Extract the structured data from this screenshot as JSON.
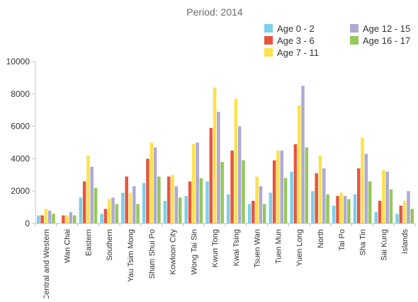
{
  "chart_data": {
    "type": "bar",
    "title": "Period: 2014",
    "xlabel": "",
    "ylabel": "",
    "ylim": [
      0,
      10000
    ],
    "yticks": [
      0,
      2000,
      4000,
      6000,
      8000,
      10000
    ],
    "grid": false,
    "legend_position": "top-right",
    "categories": [
      "Central and Western",
      "Wan Chai",
      "Eastern",
      "Southern",
      "Yau Tsim Mong",
      "Sham Shui Po",
      "Kowloon City",
      "Wong Tai Sin",
      "Kwun Tong",
      "Kwai Tsing",
      "Tsuen Wan",
      "Tuen Mun",
      "Yuen Long",
      "North",
      "Tai Po",
      "Sha Tin",
      "Sai Kung",
      "Islands"
    ],
    "series": [
      {
        "name": "Age 0 - 2",
        "color": "#7ecfea",
        "values": [
          500,
          0,
          1600,
          600,
          1900,
          2500,
          1400,
          1700,
          2600,
          1800,
          1200,
          1900,
          3200,
          2000,
          1100,
          1800,
          700,
          600
        ]
      },
      {
        "name": "Age 3 - 6",
        "color": "#e8553e",
        "values": [
          500,
          500,
          2600,
          900,
          2900,
          4000,
          2900,
          2600,
          5900,
          4500,
          1400,
          3900,
          4900,
          3100,
          1700,
          3400,
          1400,
          1100
        ]
      },
      {
        "name": "Age 7 - 11",
        "color": "#fce24b",
        "values": [
          900,
          500,
          4200,
          1500,
          1900,
          5000,
          3000,
          4900,
          8400,
          7700,
          2900,
          4500,
          7300,
          4200,
          1900,
          5300,
          3300,
          1400
        ]
      },
      {
        "name": "Age 12 - 15",
        "color": "#aeaad4",
        "values": [
          800,
          700,
          3500,
          1600,
          2300,
          4700,
          2300,
          5000,
          6900,
          6000,
          2300,
          4500,
          8500,
          3400,
          1700,
          4300,
          3200,
          2000
        ]
      },
      {
        "name": "Age 16 - 17",
        "color": "#95c75a",
        "values": [
          600,
          500,
          2200,
          1200,
          1200,
          2900,
          1600,
          2800,
          3800,
          3900,
          1200,
          2800,
          4700,
          1800,
          1500,
          2600,
          2100,
          900
        ]
      }
    ]
  }
}
